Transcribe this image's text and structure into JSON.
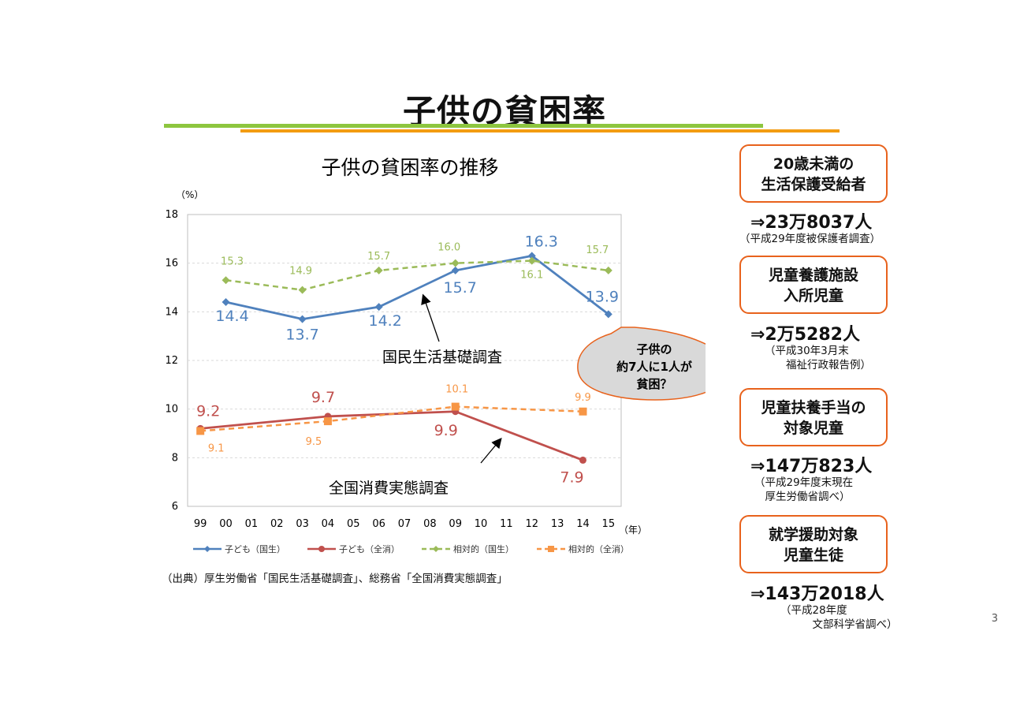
{
  "page": {
    "title": "子供の貧困率",
    "page_number": "3"
  },
  "chart_data": {
    "type": "line",
    "title": "子供の貧困率の推移",
    "y_unit": "（%）",
    "x_unit": "（年）",
    "categories": [
      "99",
      "00",
      "01",
      "02",
      "03",
      "04",
      "05",
      "06",
      "07",
      "08",
      "09",
      "10",
      "11",
      "12",
      "13",
      "14",
      "15"
    ],
    "ylim": [
      6,
      18
    ],
    "yticks": [
      6,
      8,
      10,
      12,
      14,
      16,
      18
    ],
    "grid": true,
    "legend_position": "bottom",
    "series": [
      {
        "name": "子ども（国生）",
        "color": "#4f81bd",
        "dash": false,
        "marker": "diamond",
        "points": [
          [
            "00",
            14.4
          ],
          [
            "03",
            13.7
          ],
          [
            "06",
            14.2
          ],
          [
            "09",
            15.7
          ],
          [
            "12",
            16.3
          ],
          [
            "15",
            13.9
          ]
        ],
        "labels": [
          "14.4",
          "13.7",
          "14.2",
          "15.7",
          "16.3",
          "13.9"
        ]
      },
      {
        "name": "子ども（全消）",
        "color": "#c0504d",
        "dash": false,
        "marker": "circle",
        "points": [
          [
            "99",
            9.2
          ],
          [
            "04",
            9.7
          ],
          [
            "09",
            9.9
          ],
          [
            "14",
            7.9
          ]
        ],
        "labels": [
          "9.2",
          "9.7",
          "9.9",
          "7.9"
        ]
      },
      {
        "name": "相対的（国生）",
        "color": "#9bbb59",
        "dash": true,
        "marker": "diamond",
        "points": [
          [
            "00",
            15.3
          ],
          [
            "03",
            14.9
          ],
          [
            "06",
            15.7
          ],
          [
            "09",
            16.0
          ],
          [
            "12",
            16.1
          ],
          [
            "15",
            15.7
          ]
        ],
        "labels": [
          "15.3",
          "14.9",
          "15.7",
          "16.0",
          "16.1",
          "15.7"
        ]
      },
      {
        "name": "相対的（全消）",
        "color": "#f79646",
        "dash": true,
        "marker": "square",
        "points": [
          [
            "99",
            9.1
          ],
          [
            "04",
            9.5
          ],
          [
            "09",
            10.1
          ],
          [
            "14",
            9.9
          ]
        ],
        "labels": [
          "9.1",
          "9.5",
          "10.1",
          "9.9"
        ]
      }
    ],
    "annotations": {
      "survey_kokusei": "国民生活基礎調査",
      "survey_zenshou": "全国消費実態調査",
      "callout_lines": [
        "子供の",
        "約7人に1人が",
        "貧困？"
      ]
    }
  },
  "source": "（出典）厚生労働省「国民生活基礎調査」、総務省「全国消費実態調査」",
  "facts": [
    {
      "lines": [
        "20歳未満の",
        "生活保護受給者"
      ],
      "count": "⇒23万8037人",
      "note": "（平成29年度被保護者調査）"
    },
    {
      "lines": [
        "児童養護施設",
        "入所児童"
      ],
      "count": "⇒2万5282人",
      "note": "（平成30年3月末\n　　福祉行政報告例）"
    },
    {
      "lines": [
        "児童扶養手当の",
        "対象児童"
      ],
      "count": "⇒147万823人",
      "note": "（平成29年度末現在\n　厚生労働省調べ）"
    },
    {
      "lines": [
        "就学援助対象",
        "児童生徒"
      ],
      "count": "⇒143万2018人",
      "note": "（平成28年度\n　　　文部科学省調べ）"
    }
  ]
}
